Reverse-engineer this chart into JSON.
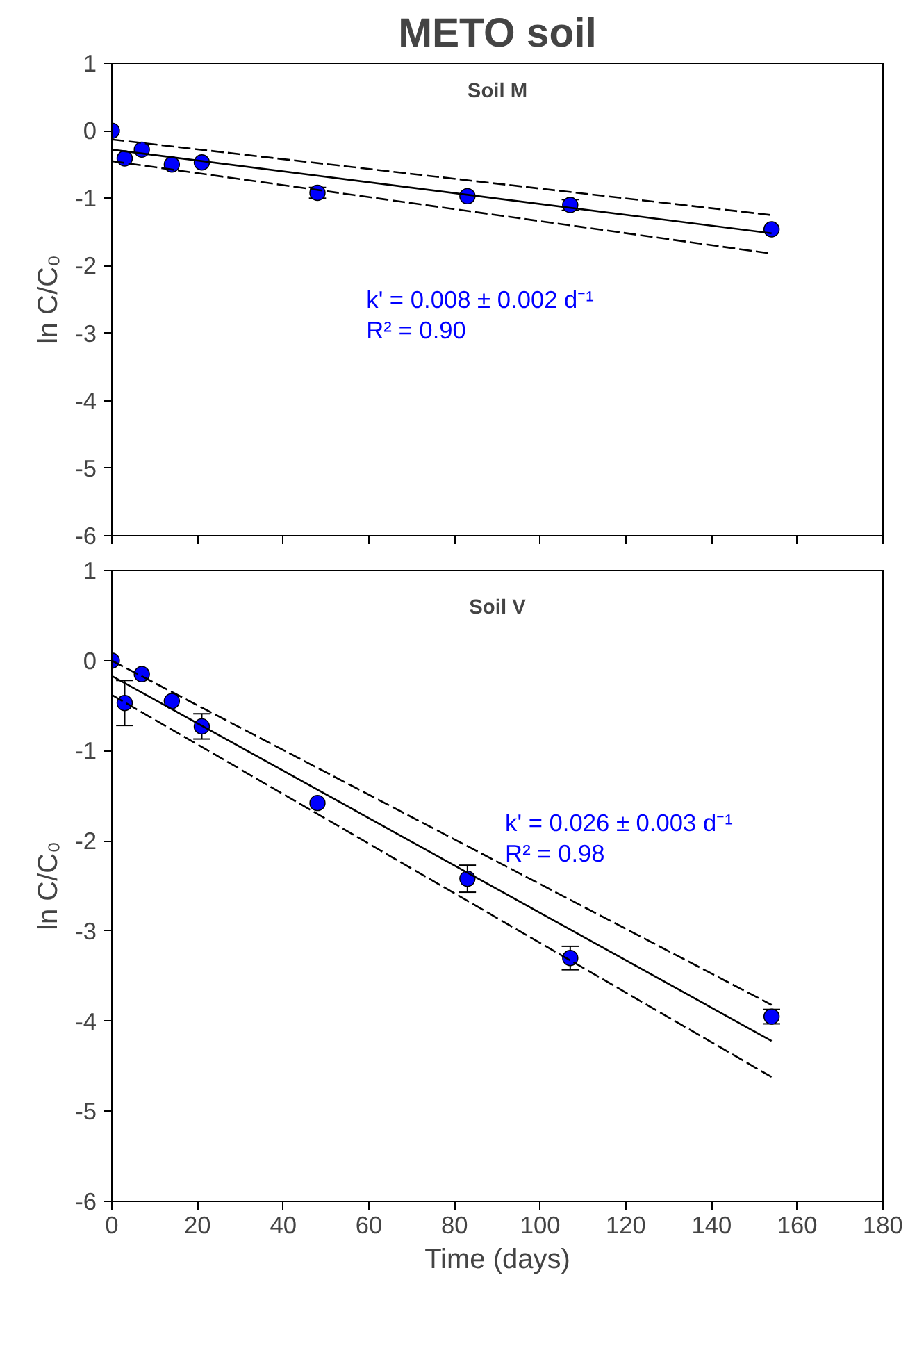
{
  "chart_data": [
    {
      "type": "scatter",
      "title": "METO soil",
      "subtitle": "Soil M",
      "ylabel": "ln C/C₀",
      "xlim": [
        0,
        180
      ],
      "xticks": [
        0,
        20,
        40,
        60,
        80,
        100,
        120,
        140,
        160,
        180
      ],
      "ylim": [
        -6,
        1
      ],
      "yticks": [
        -6,
        -5,
        -4,
        -3,
        -2,
        -1,
        0,
        1
      ],
      "tick_labels": "y",
      "grid": false,
      "annotations": [
        "k' = 0.008 ± 0.002 d⁻¹",
        "R² = 0.90"
      ],
      "series": [
        {
          "marker": "circle",
          "color": "#0000ff",
          "x": [
            0,
            3,
            7,
            14,
            21,
            48,
            83,
            107,
            154
          ],
          "values": [
            0,
            -0.41,
            -0.28,
            -0.5,
            -0.47,
            -0.92,
            -0.97,
            -1.1,
            -1.46
          ],
          "errors": [
            null,
            null,
            null,
            null,
            null,
            0.08,
            null,
            0.08,
            null
          ]
        },
        {
          "type": "line",
          "marker": "none",
          "line_style": "solid",
          "color": "#000000",
          "x": [
            0,
            154
          ],
          "values": [
            -0.28,
            -1.52
          ]
        },
        {
          "type": "line",
          "marker": "none",
          "line_style": "dashed",
          "color": "#000000",
          "x": [
            0,
            154
          ],
          "values": [
            -0.13,
            -1.25
          ]
        },
        {
          "type": "line",
          "marker": "none",
          "line_style": "dashed",
          "color": "#000000",
          "x": [
            0,
            154
          ],
          "values": [
            -0.45,
            -1.82
          ]
        }
      ]
    },
    {
      "type": "scatter",
      "title": "Soil V",
      "xlabel": "Time (days)",
      "ylabel": "ln C/C₀",
      "xlim": [
        0,
        180
      ],
      "xticks": [
        0,
        20,
        40,
        60,
        80,
        100,
        120,
        140,
        160,
        180
      ],
      "ylim": [
        -6,
        1
      ],
      "yticks": [
        -6,
        -5,
        -4,
        -3,
        -2,
        -1,
        0,
        1
      ],
      "grid": false,
      "annotations": [
        "k' = 0.026 ± 0.003 d⁻¹",
        "R² = 0.98"
      ],
      "series": [
        {
          "marker": "circle",
          "color": "#0000ff",
          "x": [
            0,
            3,
            7,
            14,
            21,
            48,
            83,
            107,
            154
          ],
          "values": [
            0,
            -0.47,
            -0.15,
            -0.45,
            -0.73,
            -1.58,
            -2.42,
            -3.3,
            -3.95
          ],
          "errors": [
            null,
            0.25,
            null,
            null,
            0.14,
            null,
            0.15,
            0.13,
            0.08
          ]
        },
        {
          "type": "line",
          "marker": "none",
          "line_style": "solid",
          "color": "#000000",
          "x": [
            0,
            154
          ],
          "values": [
            -0.17,
            -4.22
          ]
        },
        {
          "type": "line",
          "marker": "none",
          "line_style": "dashed",
          "color": "#000000",
          "x": [
            0,
            154
          ],
          "values": [
            0.0,
            -3.82
          ]
        },
        {
          "type": "line",
          "marker": "none",
          "line_style": "dashed",
          "color": "#000000",
          "x": [
            0,
            154
          ],
          "values": [
            -0.38,
            -4.62
          ]
        }
      ]
    }
  ]
}
